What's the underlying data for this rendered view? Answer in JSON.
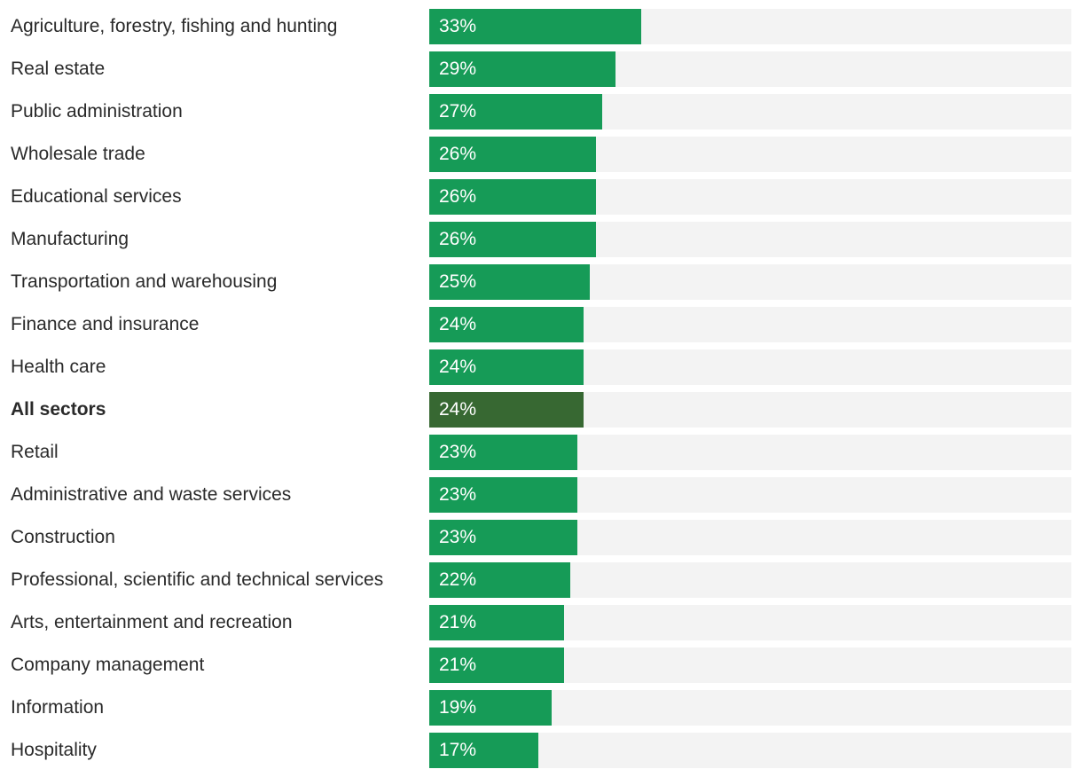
{
  "chart_data": {
    "type": "bar",
    "orientation": "horizontal",
    "unit": "%",
    "xlim": [
      0,
      100
    ],
    "categories": [
      "Agriculture, forestry, fishing and hunting",
      "Real estate",
      "Public administration",
      "Wholesale trade",
      "Educational services",
      "Manufacturing",
      "Transportation and warehousing",
      "Finance and insurance",
      "Health care",
      "All sectors",
      "Retail",
      "Administrative and waste services",
      "Construction",
      "Professional, scientific and technical services",
      "Arts, entertainment and recreation",
      "Company management",
      "Information",
      "Hospitality"
    ],
    "values": [
      33,
      29,
      27,
      26,
      26,
      26,
      25,
      24,
      24,
      24,
      23,
      23,
      23,
      22,
      21,
      21,
      19,
      17
    ],
    "value_labels": [
      "33%",
      "29%",
      "27%",
      "26%",
      "26%",
      "26%",
      "25%",
      "24%",
      "24%",
      "24%",
      "23%",
      "23%",
      "23%",
      "22%",
      "21%",
      "21%",
      "19%",
      "17%"
    ],
    "highlight": "All sectors",
    "colors": {
      "bar": "#169b57",
      "highlight_bar": "#376832",
      "track": "#f3f3f3",
      "value_text": "#ffffff",
      "label_text": "#2a2a2a"
    }
  }
}
